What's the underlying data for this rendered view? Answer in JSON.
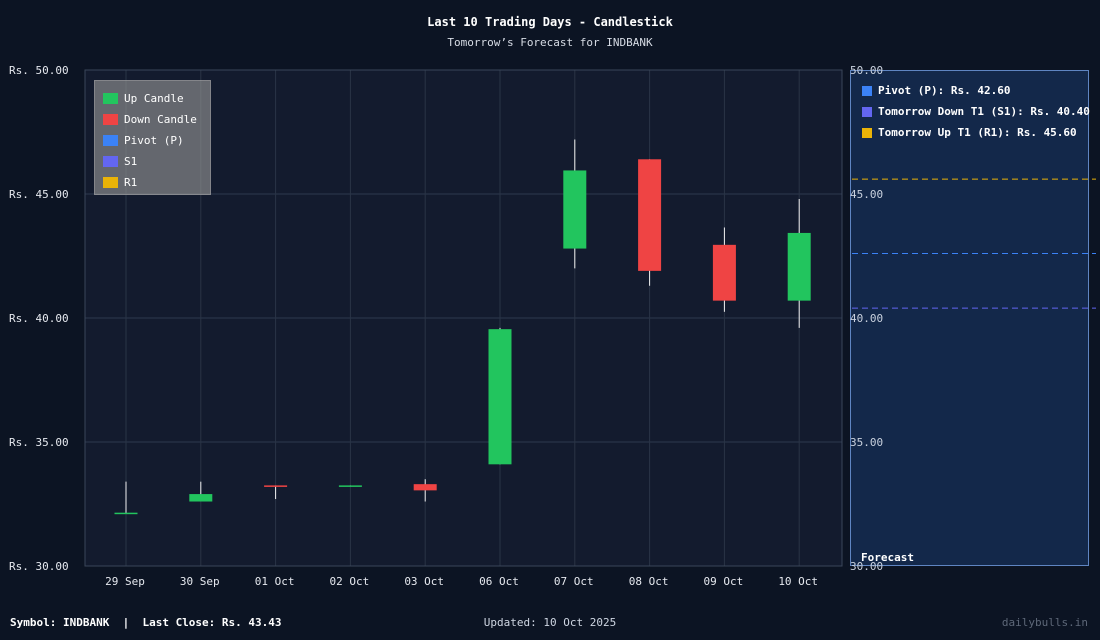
{
  "title": "Last 10 Trading Days - Candlestick",
  "subtitle": "Tomorrow’s Forecast for INDBANK",
  "footer": {
    "symbol_info": "Symbol: INDBANK  |  Last Close: Rs. 43.43",
    "updated": "Updated: 10 Oct 2025",
    "brand": "dailybulls.in"
  },
  "legend": [
    {
      "label": "Up Candle",
      "color": "#22c55e"
    },
    {
      "label": "Down Candle",
      "color": "#ef4444"
    },
    {
      "label": "Pivot (P)",
      "color": "#3b82f6"
    },
    {
      "label": "S1",
      "color": "#6366f1"
    },
    {
      "label": "R1",
      "color": "#eab308"
    }
  ],
  "forecast": {
    "label": "Forecast",
    "items": [
      {
        "label": "Pivot (P): Rs. 42.60",
        "color": "#3b82f6"
      },
      {
        "label": "Tomorrow Down T1 (S1): Rs. 40.40",
        "color": "#6366f1"
      },
      {
        "label": "Tomorrow Up T1 (R1): Rs. 45.60",
        "color": "#eab308"
      }
    ]
  },
  "chart_data": {
    "type": "candlestick",
    "title": "Last 10 Trading Days - Candlestick",
    "subtitle": "Tomorrow’s Forecast for INDBANK",
    "ylim": [
      30,
      50
    ],
    "yticks": [
      30,
      35,
      40,
      45,
      50
    ],
    "ytick_labels": [
      "Rs. 30.00",
      "Rs. 35.00",
      "Rs. 40.00",
      "Rs. 45.00",
      "Rs. 50.00"
    ],
    "right_ytick_labels": [
      "30.00",
      "35.00",
      "40.00",
      "45.00",
      "50.00"
    ],
    "grid": true,
    "legend_position": "top-left",
    "up_color": "#22c55e",
    "down_color": "#ef4444",
    "candles": [
      {
        "date": "29 Sep",
        "open": 32.1,
        "high": 33.4,
        "low": 32.1,
        "close": 32.15
      },
      {
        "date": "30 Sep",
        "open": 32.6,
        "high": 33.4,
        "low": 32.6,
        "close": 32.9
      },
      {
        "date": "01 Oct",
        "open": 33.25,
        "high": 33.25,
        "low": 32.7,
        "close": 33.2
      },
      {
        "date": "02 Oct",
        "open": 33.2,
        "high": 33.25,
        "low": 33.2,
        "close": 33.25
      },
      {
        "date": "03 Oct",
        "open": 33.3,
        "high": 33.5,
        "low": 32.6,
        "close": 33.05
      },
      {
        "date": "06 Oct",
        "open": 34.1,
        "high": 39.6,
        "low": 34.1,
        "close": 39.55
      },
      {
        "date": "07 Oct",
        "open": 42.8,
        "high": 47.2,
        "low": 42.0,
        "close": 45.95
      },
      {
        "date": "08 Oct",
        "open": 46.4,
        "high": 46.4,
        "low": 41.3,
        "close": 41.9
      },
      {
        "date": "09 Oct",
        "open": 42.95,
        "high": 43.65,
        "low": 40.25,
        "close": 40.7
      },
      {
        "date": "10 Oct",
        "open": 40.7,
        "high": 44.8,
        "low": 39.6,
        "close": 43.43
      }
    ],
    "levels": [
      {
        "name": "Pivot (P)",
        "value": 42.6,
        "color": "#3b82f6"
      },
      {
        "name": "S1",
        "value": 40.4,
        "color": "#6366f1"
      },
      {
        "name": "R1",
        "value": 45.6,
        "color": "#eab308"
      }
    ]
  }
}
